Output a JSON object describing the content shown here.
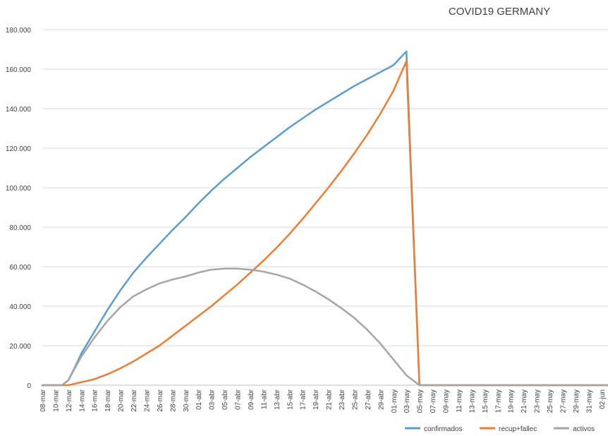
{
  "chart_data": {
    "type": "line",
    "title": "COVID19 GERMANY",
    "xlabel": "",
    "ylabel": "",
    "ylim": [
      0,
      180000
    ],
    "yticks": [
      0,
      20000,
      40000,
      60000,
      80000,
      100000,
      120000,
      140000,
      160000,
      180000
    ],
    "ytick_labels": [
      "0",
      "20.000",
      "40.000",
      "60.000",
      "80.000",
      "100.000",
      "120.000",
      "140.000",
      "160.000",
      "180.000"
    ],
    "x_start": "08-mar",
    "x_end": "03-jun",
    "xtick_labels": [
      "08-mar",
      "10-mar",
      "12-mar",
      "14-mar",
      "16-mar",
      "18-mar",
      "20-mar",
      "22-mar",
      "24-mar",
      "26-mar",
      "28-mar",
      "30-mar",
      "01-abr",
      "03-abr",
      "05-abr",
      "07-abr",
      "09-abr",
      "11-abr",
      "13-abr",
      "15-abr",
      "17-abr",
      "19-abr",
      "21-abr",
      "23-abr",
      "25-abr",
      "27-abr",
      "29-abr",
      "01-may",
      "03-may",
      "05-may",
      "07-may",
      "09-may",
      "11-may",
      "13-may",
      "15-may",
      "17-may",
      "19-may",
      "21-may",
      "23-may",
      "25-may",
      "27-may",
      "29-may",
      "31-may",
      "02-jun"
    ],
    "grid": true,
    "legend_position": "bottom-right",
    "series": [
      {
        "name": "confirmados",
        "color": "#5B9BD5",
        "points": [
          [
            "08-mar",
            0
          ],
          [
            "11-mar",
            0
          ],
          [
            "12-mar",
            2500
          ],
          [
            "13-mar",
            9000
          ],
          [
            "14-mar",
            16000
          ],
          [
            "16-mar",
            27000
          ],
          [
            "18-mar",
            38000
          ],
          [
            "20-mar",
            48000
          ],
          [
            "22-mar",
            57000
          ],
          [
            "24-mar",
            64500
          ],
          [
            "26-mar",
            71500
          ],
          [
            "28-mar",
            78500
          ],
          [
            "30-mar",
            85000
          ],
          [
            "01-abr",
            92000
          ],
          [
            "03-abr",
            98500
          ],
          [
            "05-abr",
            104500
          ],
          [
            "07-abr",
            110000
          ],
          [
            "09-abr",
            115500
          ],
          [
            "11-abr",
            120500
          ],
          [
            "13-abr",
            125500
          ],
          [
            "15-abr",
            130500
          ],
          [
            "17-abr",
            135000
          ],
          [
            "19-abr",
            139500
          ],
          [
            "21-abr",
            143500
          ],
          [
            "23-abr",
            147500
          ],
          [
            "25-abr",
            151500
          ],
          [
            "27-abr",
            155000
          ],
          [
            "29-abr",
            158500
          ],
          [
            "01-may",
            162000
          ],
          [
            "03-may",
            169000
          ],
          [
            "05-may",
            0
          ],
          [
            "03-jun",
            0
          ]
        ]
      },
      {
        "name": "recup+fallec",
        "color": "#ED7D31",
        "points": [
          [
            "08-mar",
            0
          ],
          [
            "12-mar",
            0
          ],
          [
            "14-mar",
            1500
          ],
          [
            "16-mar",
            3000
          ],
          [
            "18-mar",
            5500
          ],
          [
            "20-mar",
            8500
          ],
          [
            "22-mar",
            12000
          ],
          [
            "24-mar",
            16000
          ],
          [
            "26-mar",
            20000
          ],
          [
            "28-mar",
            25000
          ],
          [
            "30-mar",
            30000
          ],
          [
            "01-abr",
            35000
          ],
          [
            "03-abr",
            40000
          ],
          [
            "05-abr",
            45500
          ],
          [
            "07-abr",
            51000
          ],
          [
            "09-abr",
            57000
          ],
          [
            "11-abr",
            63000
          ],
          [
            "13-abr",
            69500
          ],
          [
            "15-abr",
            76500
          ],
          [
            "17-abr",
            84000
          ],
          [
            "19-abr",
            92000
          ],
          [
            "21-abr",
            100000
          ],
          [
            "23-abr",
            108500
          ],
          [
            "25-abr",
            117500
          ],
          [
            "27-abr",
            127000
          ],
          [
            "29-abr",
            137500
          ],
          [
            "01-may",
            149000
          ],
          [
            "03-may",
            164000
          ],
          [
            "05-may",
            0
          ],
          [
            "03-jun",
            0
          ]
        ]
      },
      {
        "name": "activos",
        "color": "#A5A5A5",
        "points": [
          [
            "08-mar",
            0
          ],
          [
            "11-mar",
            0
          ],
          [
            "12-mar",
            2500
          ],
          [
            "14-mar",
            14500
          ],
          [
            "16-mar",
            24000
          ],
          [
            "18-mar",
            32500
          ],
          [
            "20-mar",
            39500
          ],
          [
            "22-mar",
            45000
          ],
          [
            "24-mar",
            48500
          ],
          [
            "26-mar",
            51500
          ],
          [
            "28-mar",
            53500
          ],
          [
            "30-mar",
            55000
          ],
          [
            "01-abr",
            57000
          ],
          [
            "03-abr",
            58500
          ],
          [
            "05-abr",
            59000
          ],
          [
            "07-abr",
            59000
          ],
          [
            "09-abr",
            58500
          ],
          [
            "11-abr",
            57500
          ],
          [
            "13-abr",
            56000
          ],
          [
            "15-abr",
            54000
          ],
          [
            "17-abr",
            51000
          ],
          [
            "19-abr",
            47500
          ],
          [
            "21-abr",
            43500
          ],
          [
            "23-abr",
            39000
          ],
          [
            "25-abr",
            34000
          ],
          [
            "27-abr",
            28000
          ],
          [
            "29-abr",
            21000
          ],
          [
            "01-may",
            13000
          ],
          [
            "03-may",
            5000
          ],
          [
            "05-may",
            0
          ],
          [
            "03-jun",
            0
          ]
        ]
      }
    ]
  }
}
